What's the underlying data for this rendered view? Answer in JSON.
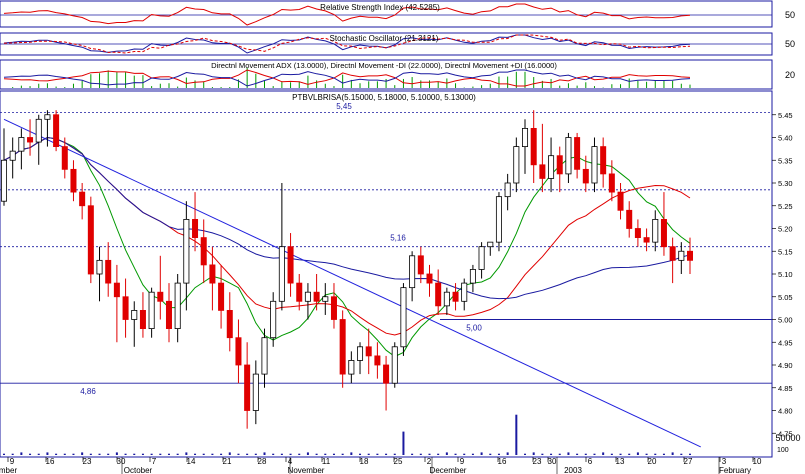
{
  "panels": {
    "rsi": {
      "title": "Relative Strength Index (42.5285)",
      "axis_labels": [
        "50"
      ]
    },
    "stochastic": {
      "title": "Stochastic Oscillator (21.3121)",
      "axis_labels": [
        "50"
      ]
    },
    "dmi": {
      "title": "Directnl Movement ADX (13.0000), Directnl Movement -DI (22.0000), Directnl Movement +DI (16.0000)",
      "axis_labels": [
        "20"
      ]
    }
  },
  "colors": {
    "up_candle": "#000000",
    "down_candle": "#e00000",
    "ma_short": "#009900",
    "ma_medium": "#e00000",
    "ma_long": "#1a1aa0",
    "trendline": "#2222dd",
    "level_line": "#1a1aa0",
    "volume": "#1a1aa0"
  },
  "chart_data": {
    "type": "candlestick",
    "title": "PTBVLBRISA(5.15000, 5.18000, 5.10000, 5.13000)",
    "ylim": [
      4.7,
      5.5
    ],
    "y_ticks": [
      "5.45",
      "5.40",
      "5.35",
      "5.30",
      "5.25",
      "5.20",
      "5.15",
      "5.10",
      "5.05",
      "5.00",
      "4.95",
      "4.90",
      "4.85",
      "4.80",
      "4.75"
    ],
    "volume_axis_label": "50000",
    "volume_axis_unit": "100",
    "x_day_labels": [
      "9",
      "16",
      "23",
      "30",
      "7",
      "14",
      "21",
      "28",
      "4",
      "11",
      "18",
      "25",
      "2",
      "9",
      "16",
      "23",
      "30",
      "6",
      "13",
      "20",
      "27",
      "3",
      "10"
    ],
    "x_month_labels": [
      "mber",
      "October",
      "November",
      "December",
      "2003",
      "February"
    ],
    "horizontal_levels": [
      {
        "value": 5.45,
        "label": "5,45"
      },
      {
        "value": 5.16,
        "label": "5,16"
      },
      {
        "value": 5.0,
        "label": "5,00"
      },
      {
        "value": 4.86,
        "label": "4,86"
      }
    ],
    "dotted_levels": [
      5.455,
      5.285,
      5.16
    ],
    "trendline": {
      "from": [
        0,
        5.44
      ],
      "to": [
        118,
        4.72
      ]
    },
    "ohlc": [
      [
        5.26,
        5.42,
        5.25,
        5.35
      ],
      [
        5.35,
        5.4,
        5.31,
        5.37
      ],
      [
        5.37,
        5.42,
        5.33,
        5.4
      ],
      [
        5.4,
        5.44,
        5.36,
        5.39
      ],
      [
        5.39,
        5.45,
        5.34,
        5.44
      ],
      [
        5.44,
        5.46,
        5.38,
        5.45
      ],
      [
        5.45,
        5.46,
        5.37,
        5.38
      ],
      [
        5.38,
        5.4,
        5.31,
        5.33
      ],
      [
        5.33,
        5.35,
        5.26,
        5.28
      ],
      [
        5.28,
        5.3,
        5.22,
        5.25
      ],
      [
        5.25,
        5.27,
        5.08,
        5.1
      ],
      [
        5.1,
        5.16,
        5.04,
        5.13
      ],
      [
        5.13,
        5.17,
        5.05,
        5.08
      ],
      [
        5.08,
        5.12,
        4.95,
        5.05
      ],
      [
        5.05,
        5.09,
        4.96,
        5.0
      ],
      [
        5.0,
        5.04,
        4.94,
        5.02
      ],
      [
        5.02,
        5.06,
        4.96,
        4.98
      ],
      [
        4.98,
        5.07,
        4.96,
        5.06
      ],
      [
        5.06,
        5.14,
        5.0,
        5.04
      ],
      [
        5.04,
        5.08,
        4.95,
        4.98
      ],
      [
        4.98,
        5.1,
        4.95,
        5.08
      ],
      [
        5.08,
        5.26,
        5.02,
        5.22
      ],
      [
        5.22,
        5.28,
        5.15,
        5.18
      ],
      [
        5.18,
        5.22,
        5.08,
        5.12
      ],
      [
        5.12,
        5.16,
        5.02,
        5.08
      ],
      [
        5.08,
        5.12,
        4.98,
        5.02
      ],
      [
        5.02,
        5.06,
        4.93,
        4.96
      ],
      [
        4.96,
        5.0,
        4.86,
        4.9
      ],
      [
        4.9,
        4.95,
        4.76,
        4.8
      ],
      [
        4.8,
        4.91,
        4.77,
        4.88
      ],
      [
        4.88,
        4.98,
        4.85,
        4.96
      ],
      [
        4.96,
        5.06,
        4.94,
        5.04
      ],
      [
        5.04,
        5.3,
        5.02,
        5.16
      ],
      [
        5.16,
        5.19,
        5.05,
        5.08
      ],
      [
        5.08,
        5.1,
        5.02,
        5.04
      ],
      [
        5.04,
        5.08,
        5.0,
        5.06
      ],
      [
        5.06,
        5.1,
        5.02,
        5.04
      ],
      [
        5.04,
        5.08,
        5.01,
        5.05
      ],
      [
        5.05,
        5.08,
        4.98,
        5.0
      ],
      [
        5.0,
        5.02,
        4.85,
        4.88
      ],
      [
        4.88,
        4.93,
        4.86,
        4.91
      ],
      [
        4.91,
        4.95,
        4.88,
        4.94
      ],
      [
        4.94,
        4.98,
        4.88,
        4.92
      ],
      [
        4.92,
        4.95,
        4.87,
        4.9
      ],
      [
        4.9,
        4.92,
        4.8,
        4.86
      ],
      [
        4.86,
        4.95,
        4.85,
        4.94
      ],
      [
        4.94,
        5.08,
        4.92,
        5.07
      ],
      [
        5.07,
        5.15,
        5.04,
        5.14
      ],
      [
        5.14,
        5.16,
        5.08,
        5.1
      ],
      [
        5.1,
        5.12,
        5.05,
        5.08
      ],
      [
        5.08,
        5.11,
        5.01,
        5.03
      ],
      [
        5.03,
        5.07,
        5.01,
        5.06
      ],
      [
        5.06,
        5.08,
        5.02,
        5.04
      ],
      [
        5.04,
        5.09,
        5.02,
        5.08
      ],
      [
        5.08,
        5.12,
        5.06,
        5.11
      ],
      [
        5.11,
        5.17,
        5.09,
        5.16
      ],
      [
        5.16,
        5.17,
        5.14,
        5.17
      ],
      [
        5.17,
        5.28,
        5.15,
        5.27
      ],
      [
        5.27,
        5.32,
        5.24,
        5.3
      ],
      [
        5.3,
        5.4,
        5.28,
        5.38
      ],
      [
        5.38,
        5.44,
        5.32,
        5.42
      ],
      [
        5.42,
        5.46,
        5.3,
        5.34
      ],
      [
        5.34,
        5.43,
        5.28,
        5.31
      ],
      [
        5.31,
        5.4,
        5.28,
        5.36
      ],
      [
        5.36,
        5.38,
        5.28,
        5.32
      ],
      [
        5.32,
        5.41,
        5.3,
        5.4
      ],
      [
        5.4,
        5.41,
        5.31,
        5.33
      ],
      [
        5.33,
        5.36,
        5.28,
        5.3
      ],
      [
        5.3,
        5.4,
        5.28,
        5.38
      ],
      [
        5.38,
        5.4,
        5.29,
        5.32
      ],
      [
        5.32,
        5.35,
        5.26,
        5.28
      ],
      [
        5.28,
        5.3,
        5.22,
        5.24
      ],
      [
        5.24,
        5.26,
        5.18,
        5.2
      ],
      [
        5.2,
        5.22,
        5.16,
        5.18
      ],
      [
        5.18,
        5.2,
        5.15,
        5.17
      ],
      [
        5.17,
        5.24,
        5.15,
        5.22
      ],
      [
        5.22,
        5.28,
        5.14,
        5.16
      ],
      [
        5.16,
        5.18,
        5.08,
        5.13
      ],
      [
        5.13,
        5.17,
        5.1,
        5.15
      ],
      [
        5.15,
        5.18,
        5.1,
        5.13
      ]
    ],
    "volume": [
      1,
      1,
      2,
      1,
      1,
      2,
      1,
      1,
      1,
      2,
      1,
      1,
      1,
      2,
      1,
      1,
      1,
      1,
      1,
      1,
      1,
      2,
      1,
      1,
      1,
      1,
      2,
      1,
      1,
      1,
      2,
      1,
      1,
      1,
      1,
      2,
      1,
      1,
      1,
      1,
      2,
      1,
      1,
      1,
      1,
      1,
      2,
      1,
      1,
      1,
      1,
      2,
      1,
      1,
      1,
      2,
      1,
      1,
      2,
      1,
      1,
      2,
      1,
      1,
      1,
      2,
      1,
      1,
      1,
      2,
      1,
      1,
      1,
      2,
      1,
      1,
      1,
      2,
      1,
      1
    ],
    "volume_spikes": [
      {
        "index": 46,
        "value": 18
      },
      {
        "index": 59,
        "value": 31
      }
    ]
  }
}
